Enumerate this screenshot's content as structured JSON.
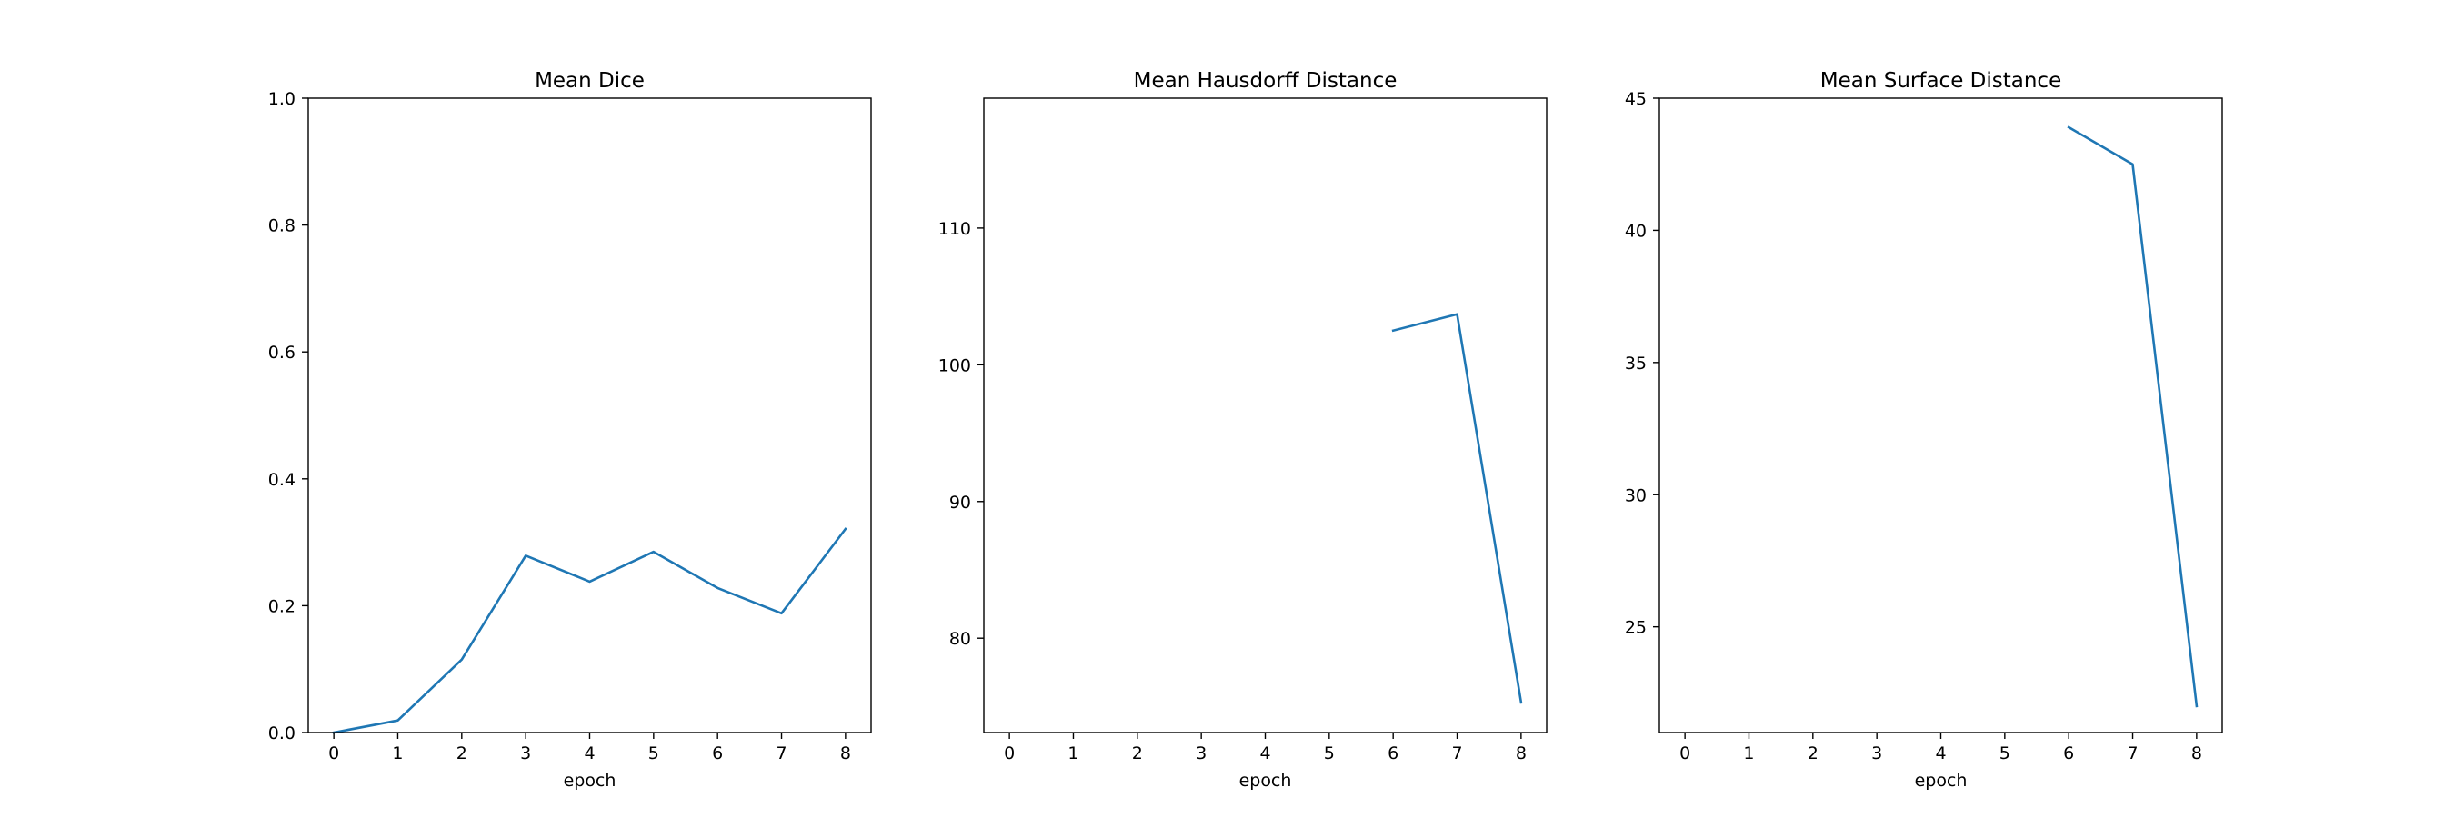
{
  "figure": {
    "background": "#ffffff",
    "series_color": "#1f77b4"
  },
  "chart_data": [
    {
      "type": "line",
      "title": "Mean Dice",
      "xlabel": "epoch",
      "ylabel": "",
      "x": [
        0,
        1,
        2,
        3,
        4,
        5,
        6,
        7,
        8
      ],
      "xticks": [
        "0",
        "1",
        "2",
        "3",
        "4",
        "5",
        "6",
        "7",
        "8"
      ],
      "xlim": [
        -0.4,
        8.4
      ],
      "ylim": [
        0,
        1
      ],
      "yticks": [
        0.0,
        0.2,
        0.4,
        0.6,
        0.8,
        1.0
      ],
      "ytick_labels": [
        "0.0",
        "0.2",
        "0.4",
        "0.6",
        "0.8",
        "1.0"
      ],
      "grid": false,
      "series": [
        {
          "values": [
            0.0,
            0.019,
            0.115,
            0.279,
            0.238,
            0.285,
            0.228,
            0.188,
            0.321
          ]
        }
      ]
    },
    {
      "type": "line",
      "title": "Mean Hausdorff Distance",
      "xlabel": "epoch",
      "ylabel": "",
      "x": [
        0,
        1,
        2,
        3,
        4,
        5,
        6,
        7,
        8
      ],
      "xticks": [
        "0",
        "1",
        "2",
        "3",
        "4",
        "5",
        "6",
        "7",
        "8"
      ],
      "xlim": [
        -0.4,
        8.4
      ],
      "ylim": [
        73.1,
        119.5
      ],
      "yticks": [
        80,
        90,
        100,
        110
      ],
      "ytick_labels": [
        "80",
        "90",
        "100",
        "110"
      ],
      "grid": false,
      "series": [
        {
          "values": [
            null,
            null,
            null,
            null,
            null,
            null,
            102.5,
            103.7,
            75.3
          ]
        }
      ]
    },
    {
      "type": "line",
      "title": "Mean Surface Distance",
      "xlabel": "epoch",
      "ylabel": "",
      "x": [
        0,
        1,
        2,
        3,
        4,
        5,
        6,
        7,
        8
      ],
      "xticks": [
        "0",
        "1",
        "2",
        "3",
        "4",
        "5",
        "6",
        "7",
        "8"
      ],
      "xlim": [
        -0.4,
        8.4
      ],
      "ylim": [
        21.0,
        45.0
      ],
      "yticks": [
        25,
        30,
        35,
        40,
        45
      ],
      "ytick_labels": [
        "25",
        "30",
        "35",
        "40",
        "45"
      ],
      "grid": false,
      "series": [
        {
          "values": [
            null,
            null,
            null,
            null,
            null,
            null,
            43.9,
            42.5,
            22.0
          ]
        }
      ]
    }
  ]
}
